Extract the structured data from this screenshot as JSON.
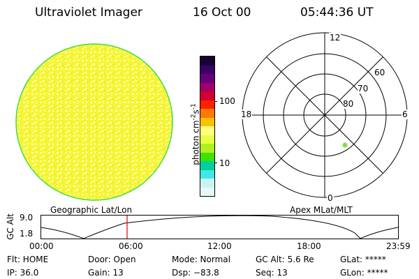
{
  "header": {
    "title": "Ultraviolet Imager",
    "date": "16 Oct 00",
    "time": "05:44:36 UT"
  },
  "colorbar": {
    "unit_label": "photon cm",
    "unit_sup1": "-2",
    "unit_mid": "s",
    "unit_sup2": "-1",
    "ticks": [
      "100",
      "10"
    ],
    "colors": [
      "#1a0033",
      "#3a0066",
      "#66007a",
      "#a0006a",
      "#d00030",
      "#ff2000",
      "#ff7a00",
      "#ffc000",
      "#ffff80",
      "#e8ff40",
      "#b0f020",
      "#40e000",
      "#00d0a0",
      "#40e8e8",
      "#c8f4f4",
      "#e8f8f8"
    ]
  },
  "polar": {
    "mlt_labels": [
      "12",
      "18",
      "6",
      "0"
    ],
    "lat_labels": [
      "60",
      "70",
      "80"
    ]
  },
  "timeline": {
    "left_label": "Geographic Lat/Lon",
    "right_label": "Apex MLat/MLT",
    "axis_title": "GC Alt",
    "y_ticks": [
      "9.0",
      "1.8"
    ],
    "time_ticks": [
      "00:00",
      "06:00",
      "12:00",
      "18:00",
      "23:59"
    ]
  },
  "status": {
    "flt": "Flt: HOME",
    "ip": "IP: 36.0",
    "door": "Door: Open",
    "gain": "Gain: 13",
    "mode": "Mode: Normal",
    "dsp": "Dsp:  −83.8",
    "gc_alt": "GC Alt: 5.6 Re",
    "seq": "Seq: 13",
    "glat": "GLat: *****",
    "glon": "GLon: *****"
  },
  "colors": {
    "disk_fill": "#f5f536",
    "disk_edge": "#44dd44",
    "cursor": "#e00000",
    "dot": "#7ee040"
  }
}
